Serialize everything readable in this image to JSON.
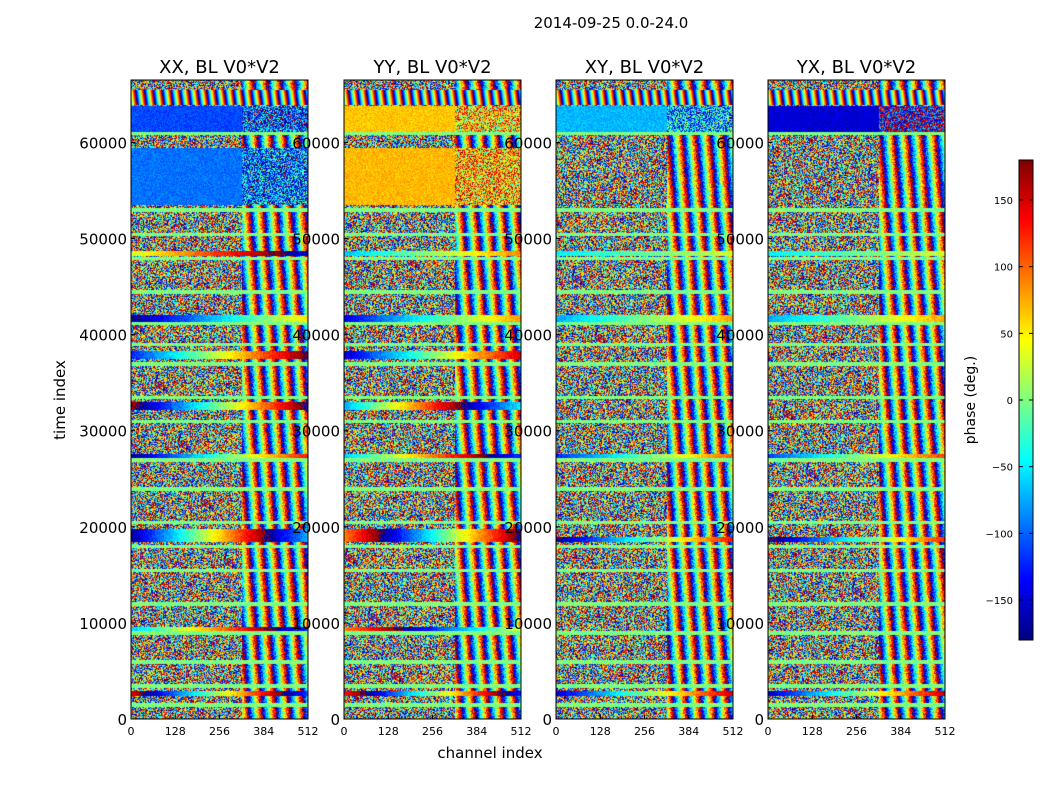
{
  "chart_data": {
    "type": "heatmap",
    "suptitle": "2014-09-25 0.0-24.0",
    "xlabel": "channel index",
    "ylabel": "time index",
    "xlim": [
      0,
      512
    ],
    "ylim": [
      0,
      66500
    ],
    "xticks": [
      0,
      128,
      256,
      384,
      512
    ],
    "yticks": [
      0,
      10000,
      20000,
      30000,
      40000,
      50000,
      60000
    ],
    "colorbar": {
      "label": "phase (deg.)",
      "range": [
        -180,
        180
      ],
      "ticks": [
        -150,
        -100,
        -50,
        0,
        50,
        100,
        150
      ],
      "colormap": "jet",
      "colors": [
        "#00007f",
        "#0000ff",
        "#007fff",
        "#00ffff",
        "#7fff7f",
        "#ffff00",
        "#ff7f00",
        "#ff0000",
        "#7f0000"
      ]
    },
    "panels": [
      {
        "title": "XX, BL V0*V2",
        "noise_channel": 320,
        "coherent_bands": [
          {
            "t0": 61000,
            "t1": 63800,
            "phase": -110,
            "drift": 0
          },
          {
            "t0": 53500,
            "t1": 59500,
            "phase": -95,
            "drift": 0
          },
          {
            "t0": 48200,
            "t1": 48800,
            "phase": 120,
            "drift": 1.2
          },
          {
            "t0": 41400,
            "t1": 42100,
            "phase": -60,
            "drift": 1.5
          },
          {
            "t0": 37500,
            "t1": 38400,
            "phase": 30,
            "drift": 2.0
          },
          {
            "t0": 32200,
            "t1": 33000,
            "phase": 0,
            "drift": 2.5
          },
          {
            "t0": 27000,
            "t1": 27600,
            "phase": -20,
            "drift": 2.0
          },
          {
            "t0": 18500,
            "t1": 19800,
            "phase": 60,
            "drift": 3.0
          },
          {
            "t0": 9000,
            "t1": 9600,
            "phase": 90,
            "drift": 2.0
          },
          {
            "t0": 2400,
            "t1": 3000,
            "phase": 20,
            "drift": 3.0
          }
        ],
        "stripe_band": {
          "t0": 64000,
          "t1": 65500,
          "freq": 10
        }
      },
      {
        "title": "YY, BL V0*V2",
        "noise_channel": 320,
        "coherent_bands": [
          {
            "t0": 61000,
            "t1": 63800,
            "phase": 65,
            "drift": 0
          },
          {
            "t0": 53500,
            "t1": 59500,
            "phase": 70,
            "drift": 0
          },
          {
            "t0": 48200,
            "t1": 48800,
            "phase": 10,
            "drift": 1.0
          },
          {
            "t0": 41400,
            "t1": 42100,
            "phase": -30,
            "drift": 1.5
          },
          {
            "t0": 37500,
            "t1": 38400,
            "phase": 0,
            "drift": 2.0
          },
          {
            "t0": 32200,
            "t1": 33000,
            "phase": 120,
            "drift": 2.5
          },
          {
            "t0": 27000,
            "t1": 27600,
            "phase": 90,
            "drift": 2.0
          },
          {
            "t0": 18500,
            "t1": 19800,
            "phase": -40,
            "drift": 3.0
          },
          {
            "t0": 9000,
            "t1": 9600,
            "phase": -120,
            "drift": 2.0
          },
          {
            "t0": 2400,
            "t1": 3000,
            "phase": 0,
            "drift": 3.0
          }
        ],
        "stripe_band": {
          "t0": 64000,
          "t1": 65500,
          "freq": 10
        }
      },
      {
        "title": "XY, BL V0*V2",
        "noise_channel": 320,
        "coherent_bands": [
          {
            "t0": 61000,
            "t1": 63800,
            "phase": -70,
            "drift": 0
          },
          {
            "t0": 48200,
            "t1": 48800,
            "phase": -10,
            "drift": 0.5
          },
          {
            "t0": 41400,
            "t1": 42100,
            "phase": 0,
            "drift": 1.0
          },
          {
            "t0": 27000,
            "t1": 27600,
            "phase": -10,
            "drift": 1.5
          },
          {
            "t0": 18500,
            "t1": 19000,
            "phase": -20,
            "drift": 2.0
          },
          {
            "t0": 2400,
            "t1": 3000,
            "phase": 0,
            "drift": 2.0
          }
        ],
        "stripe_band": {
          "t0": 64000,
          "t1": 65500,
          "freq": 10
        }
      },
      {
        "title": "YX, BL V0*V2",
        "noise_channel": 320,
        "coherent_bands": [
          {
            "t0": 61000,
            "t1": 63800,
            "phase": -150,
            "drift": 0
          },
          {
            "t0": 48200,
            "t1": 48800,
            "phase": -10,
            "drift": 0.5
          },
          {
            "t0": 41400,
            "t1": 42100,
            "phase": 0,
            "drift": 1.0
          },
          {
            "t0": 27000,
            "t1": 27600,
            "phase": 0,
            "drift": 1.5
          },
          {
            "t0": 18500,
            "t1": 19000,
            "phase": -30,
            "drift": 2.0
          },
          {
            "t0": 2400,
            "t1": 3000,
            "phase": 0,
            "drift": 2.0
          }
        ],
        "stripe_band": {
          "t0": 64000,
          "t1": 65500,
          "freq": 10
        }
      }
    ],
    "gap_rows": [
      61000,
      53000,
      50500,
      48000,
      44500,
      41200,
      39000,
      37000,
      33500,
      31000,
      27000,
      24000,
      20500,
      18000,
      15500,
      12000,
      9000,
      6000,
      3500,
      1500
    ]
  }
}
